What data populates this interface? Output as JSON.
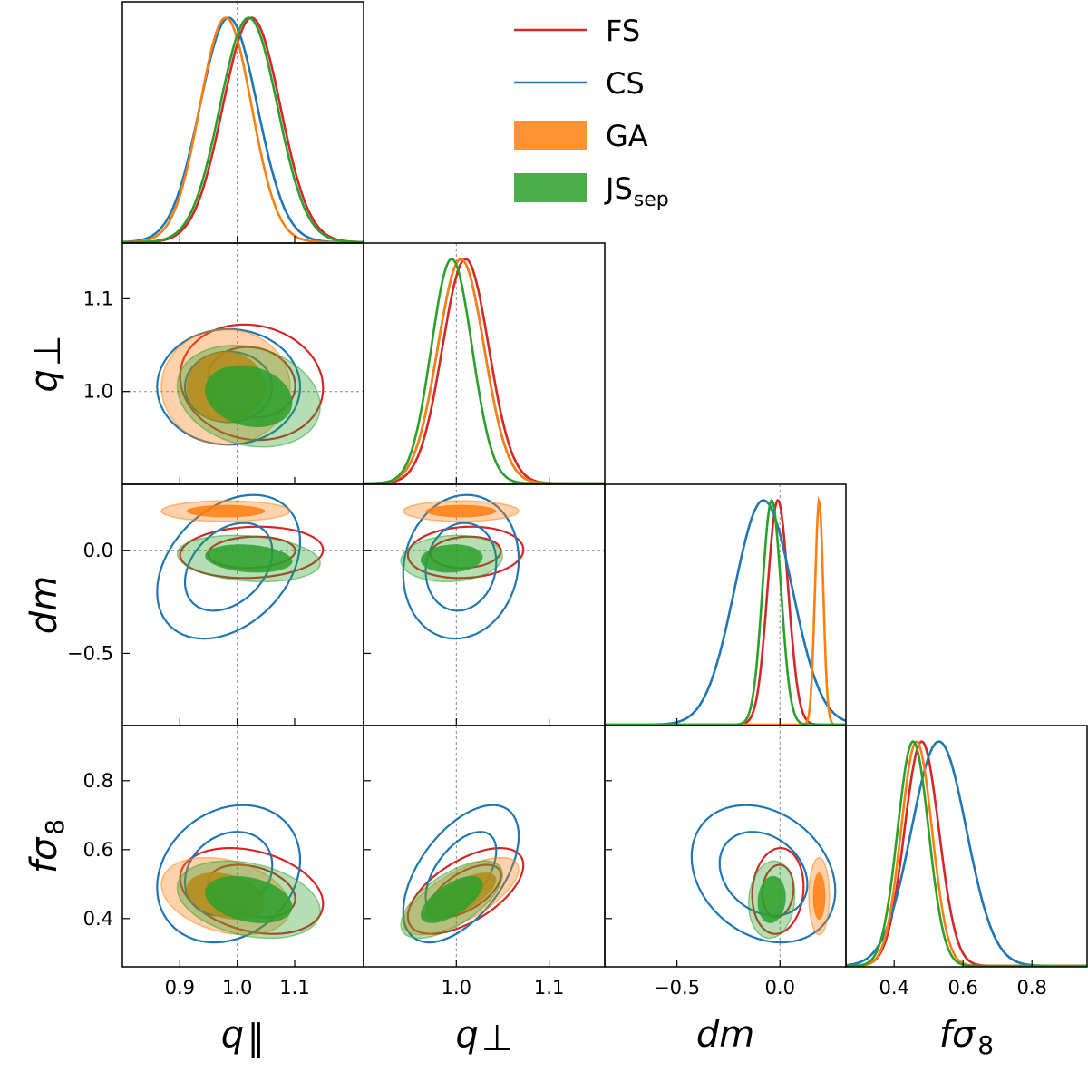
{
  "chart_data": {
    "type": "corner",
    "title": "",
    "parameters": [
      {
        "name": "q_par",
        "label_main": "q",
        "label_sub": "∥",
        "range": [
          0.8,
          1.22
        ],
        "ticks": [
          0.9,
          1.0,
          1.1
        ],
        "tick_labels": [
          "0.9",
          "1.0",
          "1.1"
        ],
        "fiducial": 1.0
      },
      {
        "name": "q_perp",
        "label_main": "q",
        "label_sub": "⊥",
        "range": [
          0.9,
          1.16
        ],
        "ticks": [
          1.0,
          1.1
        ],
        "tick_labels": [
          "1.0",
          "1.1"
        ],
        "fiducial": 1.0
      },
      {
        "name": "dm",
        "label_main": "dm",
        "label_sub": "",
        "range": [
          -0.85,
          0.32
        ],
        "ticks": [
          -0.5,
          0.0
        ],
        "tick_labels": [
          "−0.5",
          "0.0"
        ],
        "fiducial": 0.0
      },
      {
        "name": "fs8",
        "label_main": "fσ",
        "label_sub": "8",
        "range": [
          0.26,
          0.96
        ],
        "ticks": [
          0.4,
          0.6,
          0.8
        ],
        "tick_labels": [
          "0.4",
          "0.6",
          "0.8"
        ],
        "fiducial": null
      }
    ],
    "legend": {
      "position": "top-right"
    },
    "series": [
      {
        "name": "FS",
        "label_main": "FS",
        "label_sub": "",
        "color": "#d62728",
        "style": "line",
        "mean": [
          1.025,
          1.01,
          -0.01,
          0.48
        ],
        "sigma": [
          0.05,
          0.025,
          0.05,
          0.05
        ],
        "corr": [
          [
            1,
            -0.1,
            0.1,
            -0.3
          ],
          [
            -0.1,
            1,
            0.1,
            0.6
          ],
          [
            0.1,
            0.1,
            1,
            0.1
          ],
          [
            -0.3,
            0.6,
            0.1,
            1
          ]
        ]
      },
      {
        "name": "CS",
        "label_main": "CS",
        "label_sub": "",
        "color": "#1f77b4",
        "style": "line",
        "mean": [
          0.985,
          1.005,
          -0.08,
          0.53
        ],
        "sigma": [
          0.05,
          0.025,
          0.14,
          0.08
        ],
        "corr": [
          [
            1,
            0,
            0.35,
            0.2
          ],
          [
            0,
            1,
            0.1,
            0.55
          ],
          [
            0.35,
            0.1,
            1,
            -0.25
          ],
          [
            0.2,
            0.55,
            -0.25,
            1
          ]
        ]
      },
      {
        "name": "GA",
        "label_main": "GA",
        "label_sub": "",
        "color": "#ff7f0e",
        "style": "filled",
        "mean": [
          0.98,
          1.005,
          0.19,
          0.465
        ],
        "sigma": [
          0.045,
          0.025,
          0.02,
          0.045
        ],
        "corr": [
          [
            1,
            0,
            0,
            -0.3
          ],
          [
            0,
            1,
            0,
            0.7
          ],
          [
            0,
            0,
            1,
            0
          ],
          [
            -0.3,
            0.7,
            0,
            1
          ]
        ]
      },
      {
        "name": "JSsep",
        "label_main": "JS",
        "label_sub": "sep",
        "color": "#2ca02c",
        "style": "filled",
        "mean": [
          1.02,
          0.995,
          -0.04,
          0.455
        ],
        "sigma": [
          0.05,
          0.022,
          0.045,
          0.045
        ],
        "corr": [
          [
            1,
            -0.2,
            -0.2,
            -0.3
          ],
          [
            -0.2,
            1,
            0.1,
            0.65
          ],
          [
            -0.2,
            0.1,
            1,
            0.1
          ],
          [
            -0.3,
            0.65,
            0.1,
            1
          ]
        ]
      }
    ]
  }
}
